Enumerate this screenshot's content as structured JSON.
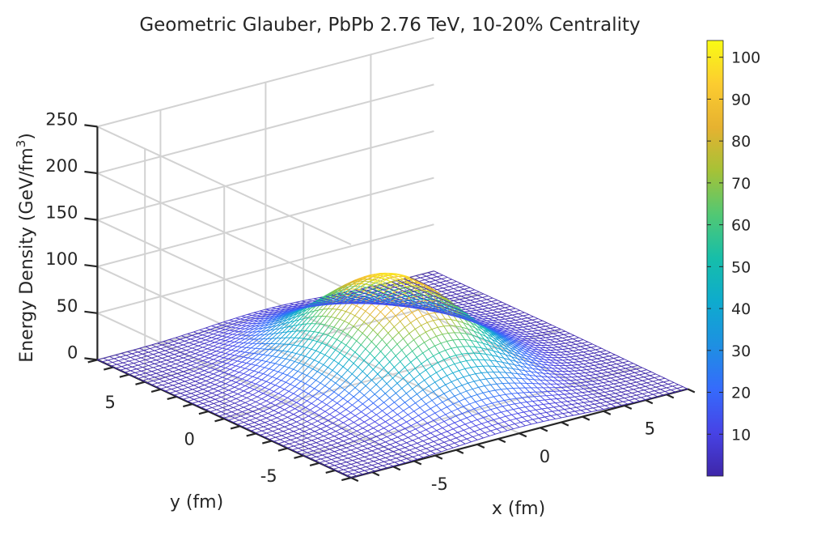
{
  "chart_data": {
    "type": "surface",
    "title": "Geometric Glauber, PbPb 2.76 TeV, 10-20% Centrality",
    "xlabel": "x (fm)",
    "ylabel": "y (fm)",
    "zlabel_main": "Energy Density (GeV/fm",
    "zlabel_sup": "3",
    "zlabel_close": ")",
    "xlim": [
      -8,
      8
    ],
    "ylim": [
      -8,
      8
    ],
    "zlim": [
      0,
      250
    ],
    "x_ticks": [
      {
        "value": -5,
        "label": "-5"
      },
      {
        "value": 0,
        "label": "0"
      },
      {
        "value": 5,
        "label": "5"
      }
    ],
    "y_ticks": [
      {
        "value": -5,
        "label": "-5"
      },
      {
        "value": 0,
        "label": "0"
      },
      {
        "value": 5,
        "label": "5"
      }
    ],
    "z_ticks": [
      {
        "value": 0,
        "label": "0"
      },
      {
        "value": 50,
        "label": "50"
      },
      {
        "value": 100,
        "label": "100"
      },
      {
        "value": 150,
        "label": "150"
      },
      {
        "value": 200,
        "label": "200"
      },
      {
        "value": 250,
        "label": "250"
      }
    ],
    "peak_value": 104,
    "sigma_x": 2.6,
    "sigma_y": 3.4,
    "colormap": "parula",
    "colorbar": {
      "range": [
        0,
        104
      ],
      "ticks": [
        {
          "value": 10,
          "label": "10"
        },
        {
          "value": 20,
          "label": "20"
        },
        {
          "value": 30,
          "label": "30"
        },
        {
          "value": 40,
          "label": "40"
        },
        {
          "value": 50,
          "label": "50"
        },
        {
          "value": 60,
          "label": "60"
        },
        {
          "value": 70,
          "label": "70"
        },
        {
          "value": 80,
          "label": "80"
        },
        {
          "value": 90,
          "label": "90"
        },
        {
          "value": 100,
          "label": "100"
        }
      ]
    },
    "grid": true
  }
}
